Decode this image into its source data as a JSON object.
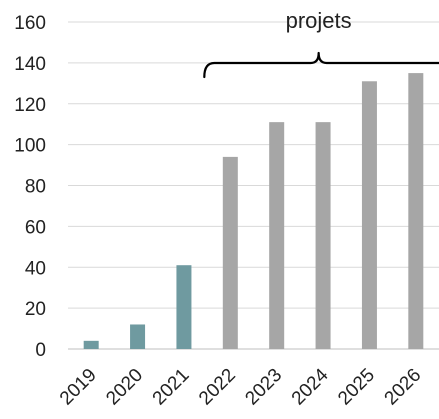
{
  "chart_data": {
    "type": "bar",
    "title": "",
    "xlabel": "",
    "ylabel": "",
    "categories": [
      "2019",
      "2020",
      "2021",
      "2022",
      "2023",
      "2024",
      "2025",
      "2026"
    ],
    "values": [
      4,
      12,
      41,
      94,
      111,
      111,
      131,
      135
    ],
    "ylim": [
      0,
      160
    ],
    "yticks": [
      "0",
      "20",
      "40",
      "60",
      "80",
      "100",
      "120",
      "140",
      "160"
    ],
    "grid": true,
    "annotation": {
      "label": "projets",
      "covers": [
        "2022",
        "2023",
        "2024",
        "2025",
        "2026"
      ]
    },
    "colors": {
      "actual": "#6f9aa0",
      "projected": "#a6a6a6",
      "grid": "#d9d9d9",
      "axis": "#bfbfbf",
      "bracket": "#000000"
    },
    "projected_from": "2022"
  }
}
